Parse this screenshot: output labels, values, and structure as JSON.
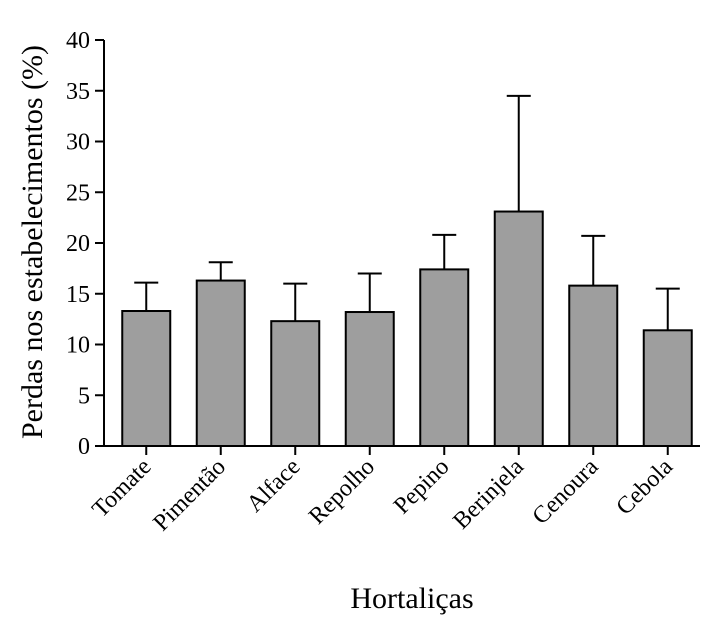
{
  "chart_data": {
    "type": "bar",
    "title": "",
    "xlabel": "Hortaliças",
    "ylabel": "Perdas nos estabelecimentos (%)",
    "ylim": [
      0,
      40
    ],
    "yticks": [
      "0",
      "5",
      "10",
      "15",
      "20",
      "25",
      "30",
      "35",
      "40"
    ],
    "grid": false,
    "categories": [
      "Tomate",
      "Pimentão",
      "Alface",
      "Repolho",
      "Pepino",
      "Berinjela",
      "Cenoura",
      "Cebola"
    ],
    "values": [
      13.3,
      16.3,
      12.3,
      13.2,
      17.4,
      23.1,
      15.8,
      11.4
    ],
    "error_upper": [
      16.1,
      18.1,
      16.0,
      17.0,
      20.8,
      34.5,
      20.7,
      15.5
    ],
    "bar_color": "#9e9e9e",
    "edge_color": "#000000"
  }
}
